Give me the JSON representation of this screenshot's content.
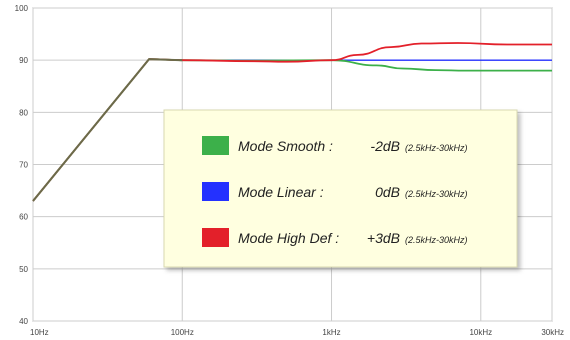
{
  "chart_data": {
    "type": "line",
    "x_scale": "log",
    "xlim": [
      "10Hz",
      "30kHz"
    ],
    "ylim": [
      40,
      100
    ],
    "grid": true,
    "x_ticks": [
      {
        "label": "10Hz",
        "hz": 10
      },
      {
        "label": "100Hz",
        "hz": 100
      },
      {
        "label": "1kHz",
        "hz": 1000
      },
      {
        "label": "10kHz",
        "hz": 10000
      },
      {
        "label": "30kHz",
        "hz": 30000
      }
    ],
    "y_ticks": [
      40,
      50,
      60,
      70,
      80,
      90,
      100
    ],
    "legend_placement": "center",
    "series": [
      {
        "name": "Mode Smooth :",
        "value": "-2dB",
        "range": "(2.5kHz-30kHz)",
        "color": "#3cb04a",
        "x_hz": [
          10,
          60,
          100,
          300,
          1000,
          2000,
          3000,
          5000,
          8000,
          15000,
          30000
        ],
        "y_db": [
          63,
          90.2,
          90,
          89.9,
          90,
          89,
          88.4,
          88.1,
          88,
          88,
          88
        ]
      },
      {
        "name": "Mode Linear :",
        "value": "0dB",
        "range": "(2.5kHz-30kHz)",
        "color": "#2431ff",
        "x_hz": [
          10,
          60,
          100,
          300,
          1000,
          3000,
          10000,
          30000
        ],
        "y_db": [
          63,
          90.2,
          90,
          90,
          90,
          90,
          90,
          90
        ]
      },
      {
        "name": "Mode High Def :",
        "value": "+3dB",
        "range": "(2.5kHz-30kHz)",
        "color": "#e3202a",
        "x_hz": [
          10,
          60,
          100,
          300,
          500,
          1000,
          1500,
          2500,
          4000,
          7000,
          15000,
          30000
        ],
        "y_db": [
          63,
          90.2,
          90,
          89.8,
          89.7,
          90,
          91,
          92.5,
          93.2,
          93.3,
          93,
          93
        ]
      }
    ]
  }
}
